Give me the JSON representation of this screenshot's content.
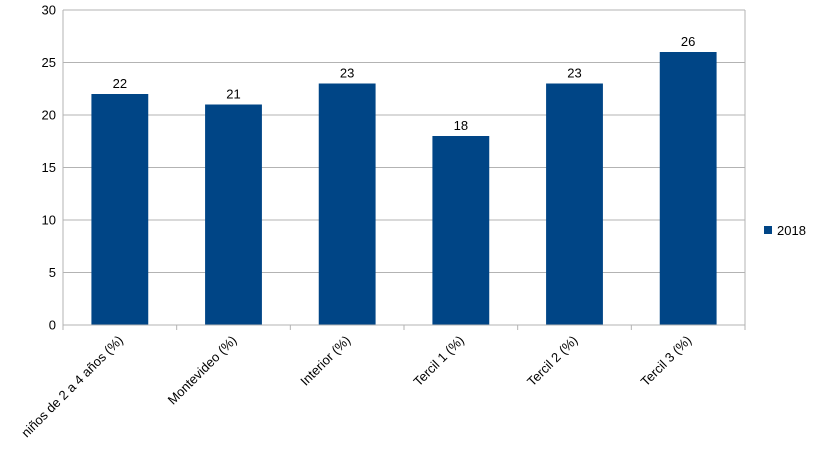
{
  "chart_data": {
    "type": "bar",
    "title": "",
    "xlabel": "",
    "ylabel": "",
    "categories": [
      "niños de 2 a 4 años (%)",
      "Montevideo (%)",
      "Interior (%)",
      "Tercil 1 (%)",
      "Tercil 2 (%)",
      "Tercil 3 (%)"
    ],
    "series": [
      {
        "name": "2018",
        "values": [
          22,
          21,
          23,
          18,
          23,
          26
        ],
        "color": "#004586"
      }
    ],
    "ylim": [
      0,
      30
    ],
    "yticks": [
      0,
      5,
      10,
      15,
      20,
      25,
      30
    ],
    "grid": true,
    "legend_position": "right",
    "data_labels": true
  }
}
